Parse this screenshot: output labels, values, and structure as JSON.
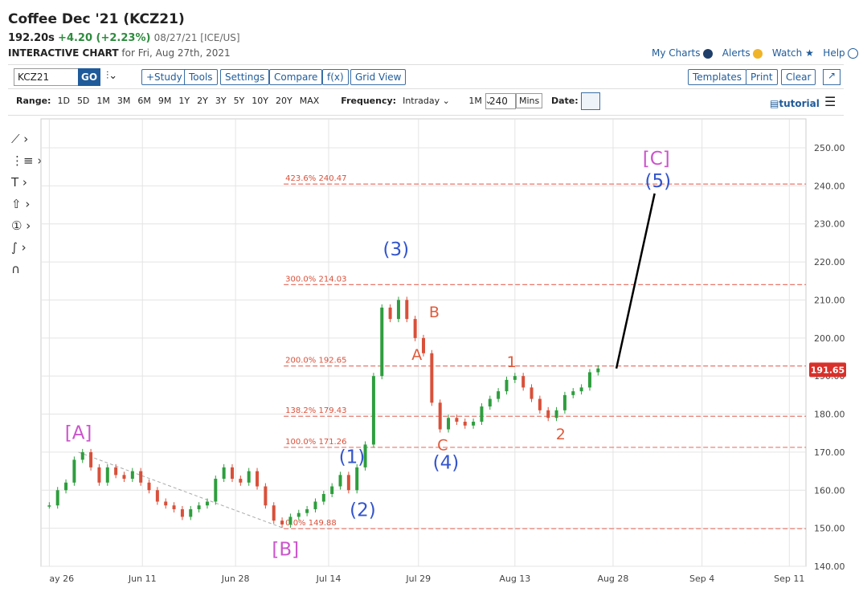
{
  "header": {
    "title": "Coffee Dec '21 (KCZ21)",
    "price": "192.20s",
    "change": "+4.20 (+2.23%)",
    "date": "08/27/21 [ICE/US]",
    "subtitle": "INTERACTIVE CHART",
    "subtitle_date": "for Fri, Aug 27th, 2021"
  },
  "top_links": [
    "My Charts",
    "Alerts",
    "Watch",
    "Help"
  ],
  "toolbar": {
    "symbol": "KCZ21",
    "go": "GO",
    "buttons": [
      "+Study",
      "Tools",
      "Settings",
      "Compare",
      "f(x)",
      "Grid View"
    ],
    "right_buttons": [
      "Templates",
      "Print",
      "Clear"
    ]
  },
  "range_bar": {
    "label": "Range:",
    "ranges": [
      "1D",
      "5D",
      "1M",
      "3M",
      "6M",
      "9M",
      "1Y",
      "2Y",
      "3Y",
      "5Y",
      "10Y",
      "20Y",
      "MAX"
    ],
    "frequency_label": "Frequency:",
    "frequency": "Intraday",
    "interval": "1M",
    "minutes": "240",
    "minutes_unit": "Mins",
    "date_label": "Date:",
    "tutorial": "tutorial"
  },
  "chart_data": {
    "type": "candlestick",
    "values": [
      156,
      160,
      162,
      168,
      170,
      166,
      162,
      166,
      164,
      163,
      165,
      162,
      160,
      157,
      156,
      155,
      153,
      155,
      156,
      157,
      163,
      166,
      163,
      162,
      165,
      161,
      156,
      152,
      151,
      153,
      154,
      155,
      157,
      159,
      161,
      164,
      160,
      166,
      172,
      190,
      208,
      205,
      210,
      205,
      200,
      196,
      183,
      176,
      179,
      178,
      177,
      178,
      182,
      184,
      186,
      189,
      190,
      187,
      184,
      181,
      179,
      181,
      185,
      186,
      187,
      191,
      192
    ],
    "up_color": "#2e9e3e",
    "down_color": "#d9503a",
    "last_price": {
      "value": 191.65,
      "label": "191.65"
    },
    "ylim": [
      140,
      257.6
    ],
    "xlim": [
      -1,
      91
    ],
    "yticks": [
      {
        "value": 140,
        "label": "140.00"
      },
      {
        "value": 150,
        "label": "150.00"
      },
      {
        "value": 160,
        "label": "160.00"
      },
      {
        "value": 170,
        "label": "170.00"
      },
      {
        "value": 180,
        "label": "180.00"
      },
      {
        "value": 190,
        "label": "190.00"
      },
      {
        "value": 200,
        "label": "200.00"
      },
      {
        "value": 210,
        "label": "210.00"
      },
      {
        "value": 220,
        "label": "220.00"
      },
      {
        "value": 230,
        "label": "230.00"
      },
      {
        "value": 240,
        "label": "240.00"
      },
      {
        "value": 250,
        "label": "250.00"
      }
    ],
    "xticks": [
      {
        "value": 0,
        "label": "ay 26"
      },
      {
        "value": 11.2,
        "label": "Jun 11"
      },
      {
        "value": 22.4,
        "label": "Jun 28"
      },
      {
        "value": 33.6,
        "label": "Jul 14"
      },
      {
        "value": 44.4,
        "label": "Jul 29"
      },
      {
        "value": 56,
        "label": "Aug 13"
      },
      {
        "value": 67.8,
        "label": "Aug 28"
      },
      {
        "value": 78.5,
        "label": "Sep 4"
      },
      {
        "value": 89,
        "label": "Sep 11"
      }
    ],
    "grid": true,
    "fib_levels": [
      {
        "label": "423.6% 240.47",
        "value": 240.47
      },
      {
        "label": "300.0% 214.03",
        "value": 214.03
      },
      {
        "label": "200.0% 192.65",
        "value": 192.65
      },
      {
        "label": "138.2% 179.43",
        "value": 179.43
      },
      {
        "label": "100.0% 171.26",
        "value": 171.26
      },
      {
        "label": "0.0% 149.88",
        "value": 149.88
      }
    ],
    "fib_start": 28.2,
    "annotations": [
      {
        "text": "[A]",
        "x": 3.5,
        "y": 175.2,
        "color": "#cc55cc"
      },
      {
        "text": "[B]",
        "x": 28.4,
        "y": 144.5,
        "color": "#cc55cc"
      },
      {
        "text": "[C]",
        "x": 73,
        "y": 247.3,
        "color": "#cc55cc"
      },
      {
        "text": "(1)",
        "x": 36.4,
        "y": 168.8,
        "color": "#3355cc"
      },
      {
        "text": "(2)",
        "x": 37.7,
        "y": 154.9,
        "color": "#3355cc"
      },
      {
        "text": "(3)",
        "x": 41.7,
        "y": 223.4,
        "color": "#3355cc"
      },
      {
        "text": "(4)",
        "x": 47.7,
        "y": 167.3,
        "color": "#3355cc"
      },
      {
        "text": "(5)",
        "x": 73.2,
        "y": 241.3,
        "color": "#3355cc"
      },
      {
        "text": "A",
        "x": 44.2,
        "y": 195.9,
        "color": "#e05a3a"
      },
      {
        "text": "B",
        "x": 46.3,
        "y": 207.1,
        "color": "#e05a3a"
      },
      {
        "text": "C",
        "x": 47.3,
        "y": 172.2,
        "color": "#e05a3a"
      },
      {
        "text": "1",
        "x": 55.6,
        "y": 194,
        "color": "#e05a3a"
      },
      {
        "text": "2",
        "x": 61.5,
        "y": 175,
        "color": "#e05a3a"
      }
    ],
    "projection": {
      "x": [
        68.2,
        72.8
      ],
      "y": [
        192,
        238
      ]
    },
    "trendline": {
      "x": [
        3.5,
        28.2
      ],
      "y": [
        170,
        150
      ]
    }
  }
}
